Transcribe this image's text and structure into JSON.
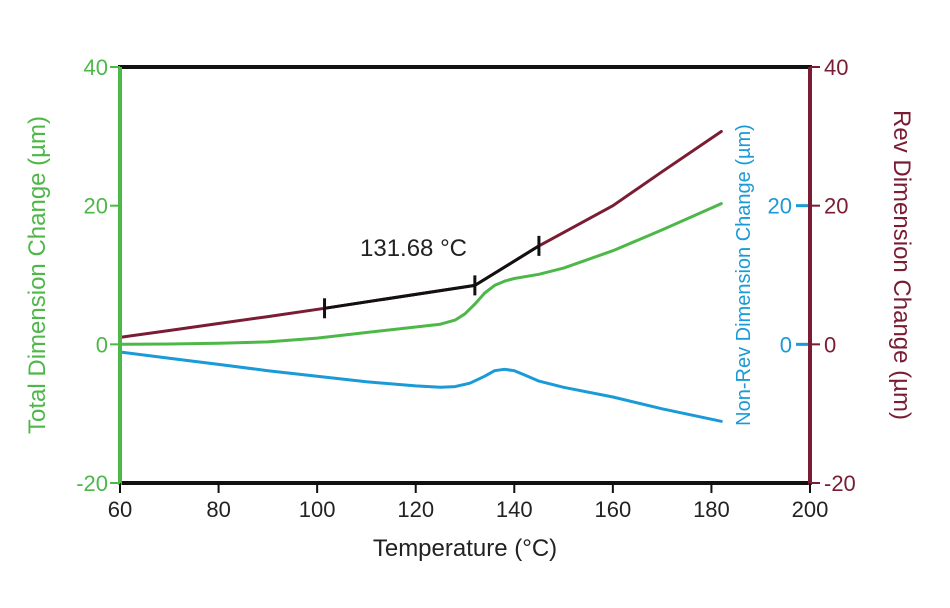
{
  "chart_data": {
    "type": "line",
    "x_axis": {
      "label": "Temperature (°C)",
      "range": [
        60,
        200
      ],
      "ticks": [
        60,
        80,
        100,
        120,
        140,
        160,
        180,
        200
      ],
      "color": "#222222"
    },
    "y_left": {
      "label": "Total Dimension Change (µm)",
      "range": [
        -20,
        40
      ],
      "ticks": [
        -20,
        0,
        20,
        40
      ],
      "color": "#4db848"
    },
    "y_right": {
      "label": "Rev Dimension Change (µm)",
      "range": [
        -20,
        40
      ],
      "ticks": [
        -20,
        0,
        20,
        40
      ],
      "color": "#7a1c33"
    },
    "y_right_inner": {
      "label": "Non-Rev Dimension Change (µm)",
      "ticks": [
        0,
        20
      ],
      "color": "#1a9ad6"
    },
    "annotation": {
      "text": "131.68 °C",
      "x1": 101.5,
      "y1": 5.2,
      "x2": 132,
      "y2": 8.5,
      "x3": 145,
      "y3": 14.2,
      "color": "#111111"
    },
    "series": [
      {
        "name": "Total Dimension Change",
        "axis": "left",
        "color": "#4db848",
        "x": [
          60,
          70,
          80,
          90,
          100,
          110,
          120,
          125,
          128,
          130,
          132,
          134,
          136,
          138,
          140,
          145,
          150,
          160,
          170,
          182
        ],
        "y": [
          0,
          0.05,
          0.15,
          0.35,
          0.9,
          1.7,
          2.5,
          2.9,
          3.5,
          4.4,
          5.8,
          7.4,
          8.5,
          9.1,
          9.5,
          10.1,
          11.0,
          13.5,
          16.5,
          20.3
        ]
      },
      {
        "name": "Rev Dimension Change",
        "axis": "right",
        "color": "#7a1c33",
        "x": [
          60,
          70,
          80,
          90,
          101.5,
          132,
          145,
          160,
          170,
          182
        ],
        "y": [
          1.0,
          2.0,
          3.0,
          4.0,
          5.2,
          8.5,
          14.2,
          20.0,
          24.9,
          30.7
        ]
      },
      {
        "name": "Non-Rev Dimension Change",
        "axis": "right",
        "color": "#1a9ad6",
        "x": [
          60,
          70,
          80,
          90,
          100,
          110,
          120,
          125,
          128,
          131,
          134,
          136,
          138,
          140,
          142,
          145,
          150,
          160,
          170,
          182
        ],
        "y": [
          -1.1,
          -2.0,
          -2.9,
          -3.8,
          -4.6,
          -5.4,
          -6.0,
          -6.2,
          -6.1,
          -5.6,
          -4.6,
          -3.8,
          -3.6,
          -3.8,
          -4.4,
          -5.3,
          -6.2,
          -7.6,
          -9.3,
          -11.1
        ]
      }
    ]
  }
}
